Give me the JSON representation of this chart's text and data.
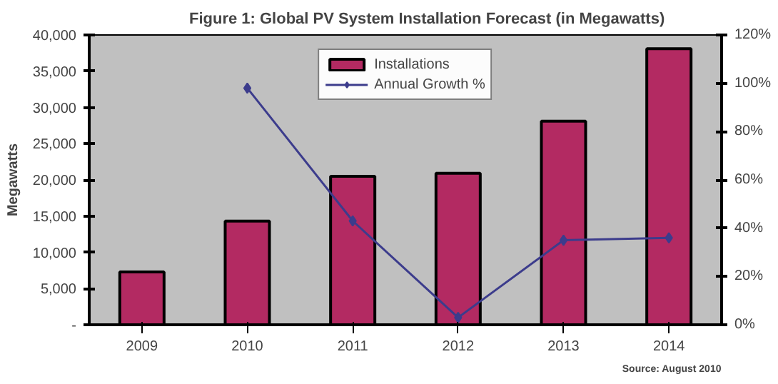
{
  "chart_data": {
    "type": "bar",
    "title": "Figure 1: Global PV System Installation Forecast (in Megawatts)",
    "ylabel": "Megawatts",
    "categories": [
      "2009",
      "2010",
      "2011",
      "2012",
      "2013",
      "2014"
    ],
    "series": [
      {
        "name": "Installations",
        "color": "#b32a62",
        "values": [
          7300,
          14300,
          20500,
          20900,
          28100,
          38100
        ]
      },
      {
        "name": "Annual Growth %",
        "type": "line",
        "axis": "y2",
        "color": "#3c3c8c",
        "marker": "diamond",
        "values": [
          null,
          98,
          43,
          3,
          35,
          36
        ]
      }
    ],
    "ylim": [
      0,
      40000
    ],
    "yticks": [
      {
        "value": 0,
        "label": "-"
      },
      {
        "value": 5000,
        "label": "5,000"
      },
      {
        "value": 10000,
        "label": "10,000"
      },
      {
        "value": 15000,
        "label": "15,000"
      },
      {
        "value": 20000,
        "label": "20,000"
      },
      {
        "value": 25000,
        "label": "25,000"
      },
      {
        "value": 30000,
        "label": "30,000"
      },
      {
        "value": 35000,
        "label": "35,000"
      },
      {
        "value": 40000,
        "label": "40,000"
      }
    ],
    "y2lim": [
      0,
      120
    ],
    "y2ticks": [
      {
        "value": 0,
        "label": "0%"
      },
      {
        "value": 20,
        "label": "20%"
      },
      {
        "value": 40,
        "label": "40%"
      },
      {
        "value": 60,
        "label": "60%"
      },
      {
        "value": 80,
        "label": "80%"
      },
      {
        "value": 100,
        "label": "100%"
      },
      {
        "value": 120,
        "label": "120%"
      }
    ],
    "grid": false,
    "legend": "top",
    "annotations": [
      "Source: August 2010"
    ]
  }
}
